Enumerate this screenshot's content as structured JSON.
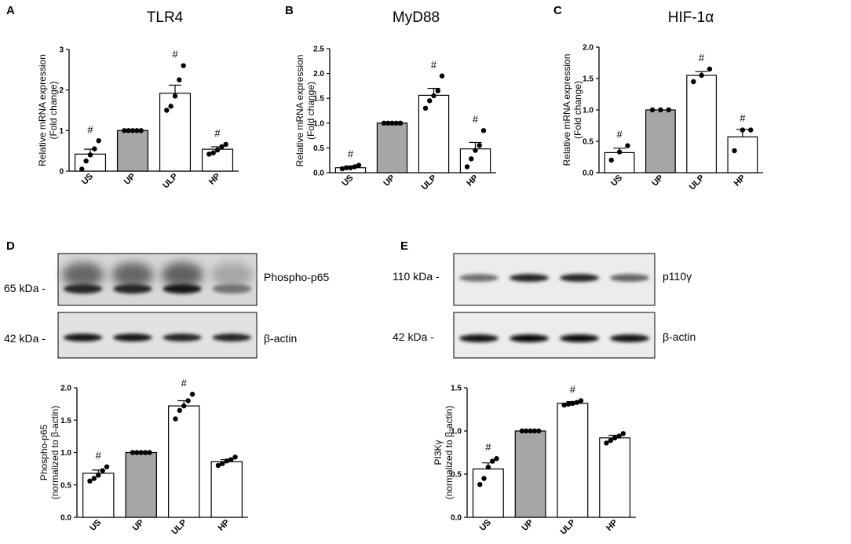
{
  "colors": {
    "filled_bar": "#a6a6a6",
    "open_bar": "#ffffff",
    "axis": "#000000",
    "point": "#000000"
  },
  "chart_data": [
    {
      "panel": "A",
      "type": "bar",
      "title": "TLR4",
      "categories": [
        "US",
        "UP",
        "ULP",
        "HP"
      ],
      "values": [
        0.42,
        1.0,
        1.92,
        0.54
      ],
      "errors": [
        0.12,
        0.0,
        0.2,
        0.06
      ],
      "fills": [
        "open",
        "filled",
        "open",
        "open"
      ],
      "points": [
        [
          0.05,
          0.25,
          0.4,
          0.55,
          0.75
        ],
        [
          1,
          1,
          1,
          1,
          1
        ],
        [
          1.5,
          1.6,
          1.85,
          2.25,
          2.6
        ],
        [
          0.42,
          0.45,
          0.52,
          0.6,
          0.66
        ]
      ],
      "significance": [
        "#",
        "",
        "#",
        "#"
      ],
      "ylabel": [
        "Relative mRNA expression",
        "(Fold change)"
      ],
      "ylim": [
        0,
        3
      ],
      "yticks": [
        0,
        1,
        2,
        3
      ],
      "tick_labels": [
        "0",
        "1",
        "2",
        "3"
      ]
    },
    {
      "panel": "B",
      "type": "bar",
      "title": "MyD88",
      "categories": [
        "US",
        "UP",
        "ULP",
        "HP"
      ],
      "values": [
        0.1,
        1.0,
        1.56,
        0.48
      ],
      "errors": [
        0.03,
        0.0,
        0.14,
        0.13
      ],
      "fills": [
        "open",
        "filled",
        "open",
        "open"
      ],
      "points": [
        [
          0.08,
          0.1,
          0.1,
          0.12,
          0.15
        ],
        [
          1,
          1,
          1,
          1,
          1
        ],
        [
          1.3,
          1.45,
          1.55,
          1.65,
          1.95
        ],
        [
          0.12,
          0.28,
          0.45,
          0.55,
          0.85
        ]
      ],
      "significance": [
        "#",
        "",
        "#",
        "#"
      ],
      "ylabel": [
        "Relative mRNA expression",
        "(Fold change)"
      ],
      "ylim": [
        0,
        2.5
      ],
      "yticks": [
        0,
        0.5,
        1,
        1.5,
        2,
        2.5
      ],
      "tick_labels": [
        "0.0",
        "0.5",
        "1.0",
        "1.5",
        "2.0",
        "2.5"
      ]
    },
    {
      "panel": "C",
      "type": "bar",
      "title": "HIF-1α",
      "categories": [
        "US",
        "UP",
        "ULP",
        "HP"
      ],
      "values": [
        0.32,
        1.0,
        1.55,
        0.57
      ],
      "errors": [
        0.07,
        0.0,
        0.06,
        0.12
      ],
      "fills": [
        "open",
        "filled",
        "open",
        "open"
      ],
      "points": [
        [
          0.2,
          0.33,
          0.43
        ],
        [
          1,
          1,
          1
        ],
        [
          1.45,
          1.55,
          1.65
        ],
        [
          0.35,
          0.68,
          0.68
        ]
      ],
      "significance": [
        "#",
        "",
        "#",
        "#"
      ],
      "ylabel": [
        "Relative mRNA expression",
        "(Fold change)"
      ],
      "ylim": [
        0,
        2
      ],
      "yticks": [
        0,
        0.5,
        1,
        1.5,
        2
      ],
      "tick_labels": [
        "0.0",
        "0.5",
        "1.0",
        "1.5",
        "2.0"
      ]
    },
    {
      "panel": "D",
      "type": "bar",
      "title": "",
      "categories": [
        "US",
        "UP",
        "ULP",
        "HP"
      ],
      "values": [
        0.68,
        1.0,
        1.72,
        0.86
      ],
      "errors": [
        0.05,
        0.0,
        0.08,
        0.03
      ],
      "fills": [
        "open",
        "filled",
        "open",
        "open"
      ],
      "points": [
        [
          0.56,
          0.6,
          0.65,
          0.72,
          0.78
        ],
        [
          1,
          1,
          1,
          1,
          1
        ],
        [
          1.52,
          1.65,
          1.72,
          1.8,
          1.9
        ],
        [
          0.8,
          0.83,
          0.87,
          0.89,
          0.93
        ]
      ],
      "significance": [
        "#",
        "",
        "#",
        ""
      ],
      "ylabel": [
        "Phospho-p65",
        "(normalized to β-actin)"
      ],
      "ylim": [
        0,
        2
      ],
      "yticks": [
        0,
        0.5,
        1,
        1.5,
        2
      ],
      "tick_labels": [
        "0.0",
        "0.5",
        "1.0",
        "1.5",
        "2.0"
      ]
    },
    {
      "panel": "E",
      "type": "bar",
      "title": "",
      "categories": [
        "US",
        "UP",
        "ULP",
        "HP"
      ],
      "values": [
        0.56,
        1.0,
        1.32,
        0.92
      ],
      "errors": [
        0.07,
        0.0,
        0.02,
        0.03
      ],
      "fills": [
        "open",
        "filled",
        "open",
        "open"
      ],
      "points": [
        [
          0.38,
          0.45,
          0.58,
          0.65,
          0.68
        ],
        [
          1,
          1,
          1,
          1,
          1
        ],
        [
          1.3,
          1.31,
          1.32,
          1.33,
          1.35
        ],
        [
          0.86,
          0.89,
          0.92,
          0.94,
          0.97
        ]
      ],
      "significance": [
        "#",
        "",
        "#",
        ""
      ],
      "ylabel": [
        "PI3Kγ",
        "(normalized to β-actin)"
      ],
      "ylim": [
        0,
        1.5
      ],
      "yticks": [
        0,
        0.5,
        1,
        1.5
      ],
      "tick_labels": [
        "0.0",
        "0.5",
        "1.0",
        "1.5"
      ]
    }
  ],
  "blots": {
    "D": {
      "top": {
        "mw": "65 kDa -",
        "label": "Phospho-p65",
        "band_strength": [
          0.85,
          0.85,
          0.9,
          0.55
        ]
      },
      "bottom": {
        "mw": "42 kDa -",
        "label": "β-actin",
        "band_strength": [
          0.9,
          0.9,
          0.85,
          0.85
        ]
      }
    },
    "E": {
      "top": {
        "mw": "110 kDa -",
        "label": "p110γ",
        "band_strength": [
          0.55,
          0.85,
          0.85,
          0.6
        ]
      },
      "bottom": {
        "mw": "42 kDa -",
        "label": "β-actin",
        "band_strength": [
          0.9,
          0.95,
          0.95,
          0.9
        ]
      }
    }
  }
}
